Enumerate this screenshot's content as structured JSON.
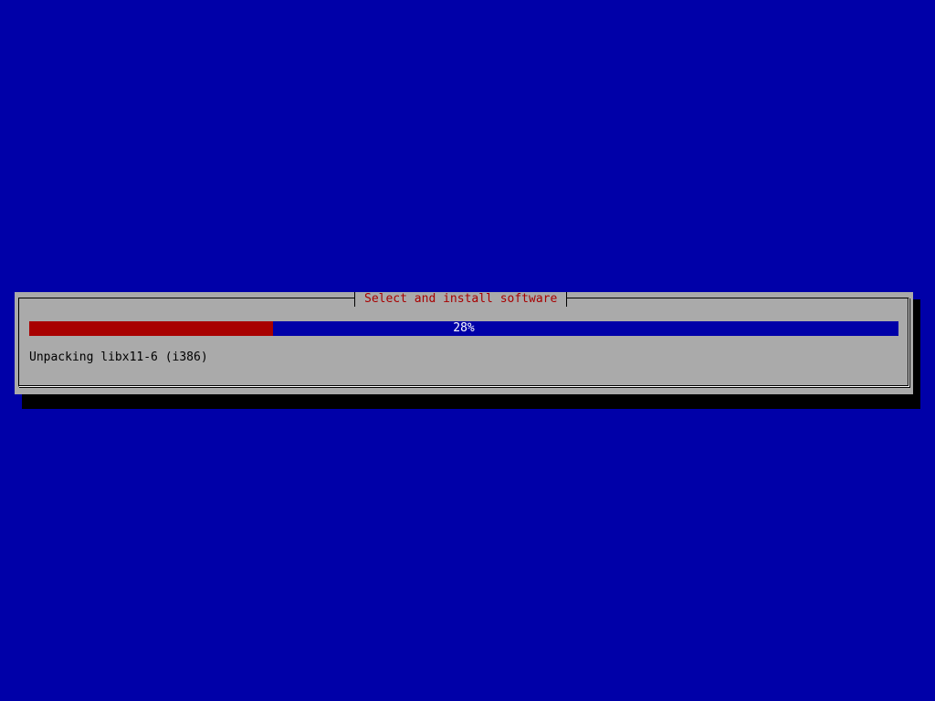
{
  "colors": {
    "background": "#0000a8",
    "dialog": "#aaaaaa",
    "title": "#a80000",
    "progress_fill": "#a80000",
    "progress_track": "#0000a8"
  },
  "dialog": {
    "title": "Select and install software",
    "progress_percent": 28,
    "progress_label": "28%",
    "status": "Unpacking libx11-6 (i386)"
  }
}
